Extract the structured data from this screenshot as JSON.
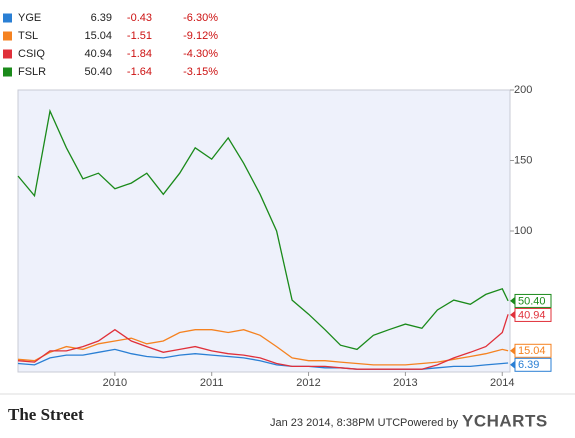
{
  "chart_data": {
    "type": "line",
    "x": [
      2009.0,
      2009.17,
      2009.33,
      2009.5,
      2009.67,
      2009.83,
      2010.0,
      2010.17,
      2010.33,
      2010.5,
      2010.67,
      2010.83,
      2011.0,
      2011.17,
      2011.33,
      2011.5,
      2011.67,
      2011.83,
      2012.0,
      2012.17,
      2012.33,
      2012.5,
      2012.67,
      2012.83,
      2013.0,
      2013.17,
      2013.33,
      2013.5,
      2013.67,
      2013.83,
      2014.0,
      2014.06
    ],
    "series": [
      {
        "name": "YGE",
        "color": "#2a7fd4",
        "change": -0.43,
        "change_pct": {
          "value": -6.3,
          "label": "-6.30%"
        },
        "values": [
          6,
          5,
          10,
          12,
          12,
          14,
          16,
          13,
          11,
          10,
          12,
          13,
          12,
          11,
          10,
          8,
          5,
          4,
          4,
          3,
          3,
          2,
          2,
          2,
          2,
          2,
          3,
          4,
          4,
          5,
          6,
          6.39
        ],
        "value_labels": [
          null,
          null,
          null,
          null,
          null,
          null,
          null,
          null,
          null,
          null,
          null,
          null,
          null,
          null,
          null,
          null,
          null,
          null,
          null,
          null,
          null,
          null,
          null,
          null,
          null,
          null,
          null,
          null,
          null,
          null,
          null,
          "6.39"
        ]
      },
      {
        "name": "TSL",
        "color": "#f58220",
        "change": -1.51,
        "change_pct": {
          "value": -9.12,
          "label": "-9.12%"
        },
        "values": [
          9,
          8,
          14,
          18,
          16,
          20,
          22,
          24,
          20,
          22,
          28,
          30,
          30,
          28,
          30,
          26,
          18,
          10,
          8,
          8,
          7,
          6,
          5,
          5,
          5,
          6,
          7,
          9,
          11,
          13,
          16,
          15.04
        ],
        "value_labels": [
          null,
          null,
          null,
          null,
          null,
          null,
          null,
          null,
          null,
          null,
          null,
          null,
          null,
          null,
          null,
          null,
          null,
          null,
          null,
          null,
          null,
          null,
          null,
          null,
          null,
          null,
          null,
          null,
          null,
          null,
          null,
          "15.04"
        ]
      },
      {
        "name": "CSIQ",
        "color": "#e0303a",
        "change": -1.84,
        "change_pct": {
          "value": -4.3,
          "label": "-4.30%"
        },
        "values": [
          8,
          7,
          15,
          15,
          18,
          22,
          30,
          22,
          18,
          14,
          16,
          18,
          15,
          13,
          12,
          10,
          6,
          4,
          4,
          4,
          3,
          2,
          2,
          2,
          2,
          2,
          5,
          10,
          14,
          18,
          28,
          40.94
        ],
        "value_labels": [
          null,
          null,
          null,
          null,
          null,
          null,
          null,
          null,
          null,
          null,
          null,
          null,
          null,
          null,
          null,
          null,
          null,
          null,
          null,
          null,
          null,
          null,
          null,
          null,
          null,
          null,
          null,
          null,
          null,
          null,
          null,
          "40.94"
        ]
      },
      {
        "name": "FSLR",
        "color": "#1a8a1a",
        "change": -1.64,
        "change_pct": {
          "value": -3.15,
          "label": "-3.15%"
        },
        "values": [
          139,
          125,
          185,
          159,
          137,
          141,
          130,
          134,
          141,
          126,
          141,
          159,
          151,
          166,
          148,
          126,
          100,
          51,
          41,
          30,
          19,
          16,
          26,
          30,
          34,
          31,
          44,
          51,
          48,
          55,
          59,
          50.4
        ],
        "value_labels": [
          null,
          null,
          null,
          null,
          null,
          null,
          null,
          null,
          null,
          null,
          null,
          null,
          null,
          null,
          null,
          null,
          null,
          null,
          null,
          null,
          null,
          null,
          null,
          null,
          null,
          null,
          null,
          null,
          null,
          null,
          null,
          "50.40"
        ]
      }
    ],
    "xlim": [
      2009.0,
      2014.08
    ],
    "xticks": [
      2010,
      2011,
      2012,
      2013,
      2014
    ],
    "ylim": [
      0,
      200
    ],
    "yticks": [
      100,
      150,
      200
    ],
    "grid": false
  },
  "footer": {
    "source": "The Street",
    "timestamp": "Jan 23 2014, 8:38PM UTC.",
    "powered_by": "Powered by",
    "brand": "YCHARTS"
  }
}
